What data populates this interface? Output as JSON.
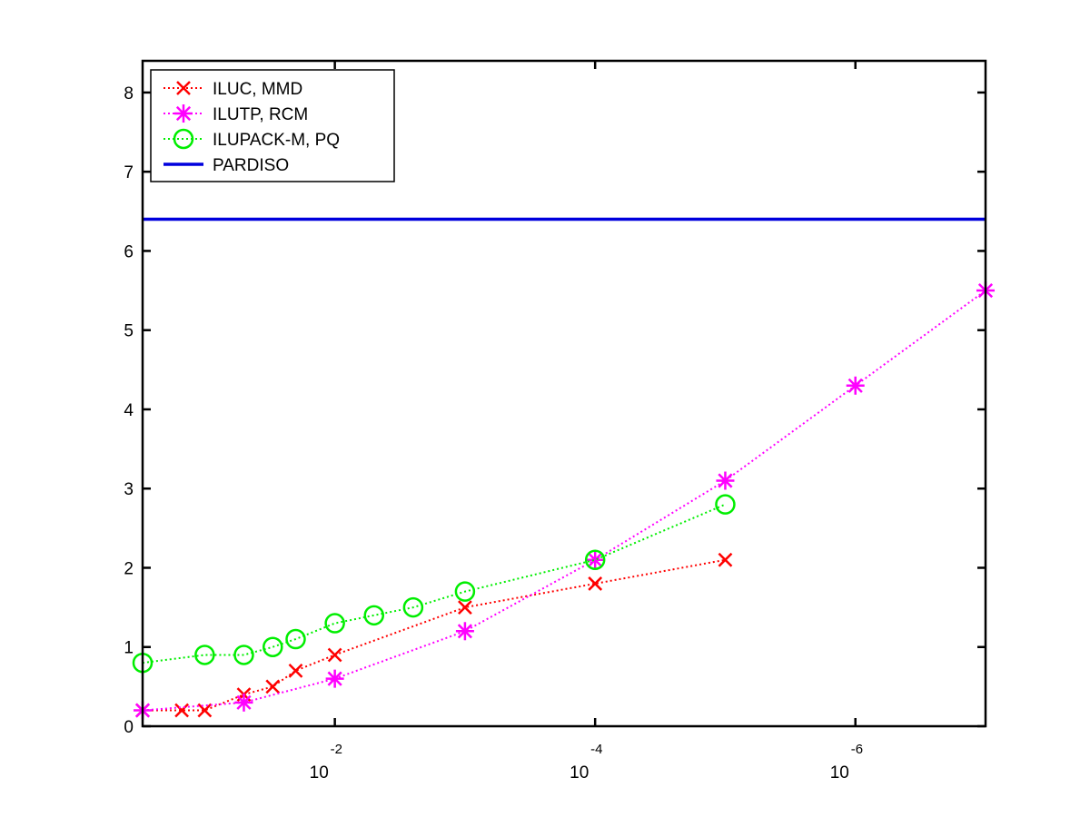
{
  "chart_data": {
    "type": "line",
    "x_scale": "log",
    "x_reversed": true,
    "x_tick_base": "10",
    "x_ticks": [
      {
        "value": 0.01,
        "exponent": "-2"
      },
      {
        "value": 0.0001,
        "exponent": "-4"
      },
      {
        "value": 1e-06,
        "exponent": "-6"
      }
    ],
    "xlim": [
      0.3,
      1e-07
    ],
    "ylim": [
      0,
      8.4
    ],
    "y_ticks": [
      0,
      1,
      2,
      3,
      4,
      5,
      6,
      7,
      8
    ],
    "y_tick_labels": [
      "0",
      "1",
      "2",
      "3",
      "4",
      "5",
      "6",
      "7",
      "8"
    ],
    "grid": false,
    "legend_position": "top-left",
    "series": [
      {
        "name": "ILUC, MMD",
        "color": "#ff0000",
        "marker": "x",
        "line_style": "dotted",
        "x": [
          0.3,
          0.15,
          0.1,
          0.05,
          0.03,
          0.02,
          0.01,
          0.001,
          0.0001,
          1e-05
        ],
        "y": [
          0.2,
          0.2,
          0.2,
          0.4,
          0.5,
          0.7,
          0.9,
          1.5,
          1.8,
          2.1
        ]
      },
      {
        "name": "ILUTP, RCM",
        "color": "#ff00ff",
        "marker": "asterisk",
        "line_style": "dotted",
        "x": [
          0.3,
          0.05,
          0.01,
          0.001,
          0.0001,
          1e-05,
          1e-06,
          1e-07
        ],
        "y": [
          0.2,
          0.3,
          0.6,
          1.2,
          2.1,
          3.1,
          4.3,
          5.5
        ]
      },
      {
        "name": "ILUPACK-M, PQ",
        "color": "#00ee00",
        "marker": "circle",
        "line_style": "dotted",
        "x": [
          0.3,
          0.1,
          0.05,
          0.03,
          0.02,
          0.01,
          0.005,
          0.0025,
          0.001,
          0.0001,
          1e-05
        ],
        "y": [
          0.8,
          0.9,
          0.9,
          1.0,
          1.1,
          1.3,
          1.4,
          1.5,
          1.7,
          2.1,
          2.8
        ]
      },
      {
        "name": "PARDISO",
        "color": "#0000dd",
        "marker": "none",
        "line_style": "solid",
        "x": [
          0.3,
          1e-07
        ],
        "y": [
          6.4,
          6.4
        ]
      }
    ]
  }
}
